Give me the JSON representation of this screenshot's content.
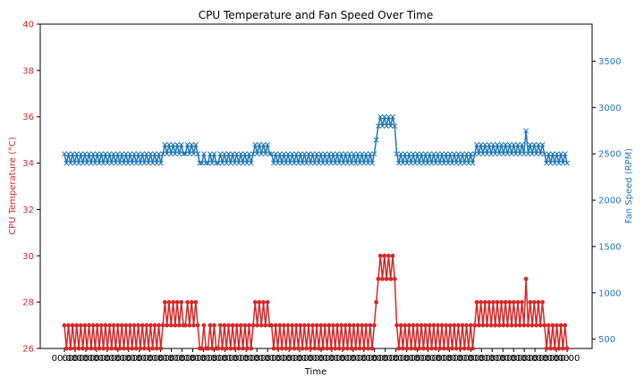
{
  "chart_data": {
    "type": "line",
    "title": "CPU Temperature and Fan Speed Over Time",
    "xlabel": "Time",
    "y1label": "CPU Temperature (°C)",
    "y2label": "Fan Speed (RPM)",
    "y1lim": [
      26,
      40
    ],
    "y2lim": [
      400,
      3900
    ],
    "y1ticks": [
      "26",
      "28",
      "30",
      "32",
      "34",
      "36",
      "38",
      "40"
    ],
    "y2ticks": [
      "500",
      "1000",
      "1500",
      "2000",
      "2500",
      "3000",
      "3500"
    ],
    "x_tick_label": "00:00",
    "grid": false,
    "colors": {
      "temperature": "#d62728",
      "fan": "#1f77b4"
    },
    "series": [
      {
        "axis": "left",
        "marker": "circle",
        "values": [
          27,
          26,
          27,
          26,
          27,
          26,
          27,
          26,
          27,
          26,
          27,
          26,
          27,
          26,
          27,
          26,
          27,
          26,
          27,
          26,
          27,
          26,
          27,
          26,
          27,
          26,
          27,
          26,
          27,
          26,
          27,
          26,
          27,
          26,
          27,
          26,
          27,
          26,
          27,
          26,
          27,
          26,
          27,
          26,
          27,
          26,
          27,
          26,
          27,
          28,
          27,
          28,
          27,
          28,
          27,
          28,
          27,
          28,
          27,
          27,
          28,
          27,
          28,
          27,
          28,
          27,
          26,
          26,
          27,
          26,
          26,
          27,
          26,
          27,
          26,
          26,
          27,
          26,
          27,
          26,
          27,
          26,
          27,
          26,
          27,
          26,
          27,
          26,
          27,
          26,
          27,
          26,
          27,
          28,
          27,
          28,
          27,
          28,
          27,
          28,
          27,
          27,
          26,
          27,
          26,
          27,
          26,
          27,
          26,
          27,
          26,
          27,
          26,
          27,
          26,
          27,
          26,
          27,
          26,
          27,
          26,
          27,
          26,
          27,
          26,
          27,
          26,
          27,
          26,
          27,
          26,
          27,
          26,
          27,
          26,
          27,
          26,
          27,
          26,
          27,
          26,
          27,
          26,
          27,
          26,
          27,
          26,
          27,
          26,
          27,
          26,
          27,
          28,
          29,
          30,
          29,
          30,
          29,
          30,
          29,
          30,
          29,
          27,
          26,
          27,
          26,
          27,
          26,
          27,
          26,
          27,
          26,
          27,
          26,
          27,
          26,
          27,
          26,
          27,
          26,
          27,
          26,
          27,
          26,
          27,
          26,
          27,
          26,
          27,
          26,
          27,
          26,
          27,
          26,
          27,
          26,
          27,
          26,
          27,
          26,
          27,
          28,
          27,
          28,
          27,
          28,
          27,
          28,
          27,
          28,
          27,
          28,
          27,
          28,
          27,
          28,
          27,
          28,
          27,
          28,
          27,
          28,
          27,
          28,
          27,
          29,
          27,
          28,
          27,
          28,
          27,
          28,
          27,
          28,
          27,
          26,
          27,
          26,
          27,
          26,
          27,
          26,
          27,
          26,
          27,
          26
        ]
      },
      {
        "axis": "right",
        "marker": "x",
        "values": [
          2500,
          2400,
          2500,
          2400,
          2500,
          2400,
          2500,
          2400,
          2500,
          2400,
          2500,
          2400,
          2500,
          2400,
          2500,
          2400,
          2500,
          2400,
          2500,
          2400,
          2500,
          2400,
          2500,
          2400,
          2500,
          2400,
          2500,
          2400,
          2500,
          2400,
          2500,
          2400,
          2500,
          2400,
          2500,
          2400,
          2500,
          2400,
          2500,
          2400,
          2500,
          2400,
          2500,
          2400,
          2500,
          2400,
          2500,
          2400,
          2500,
          2600,
          2500,
          2600,
          2500,
          2600,
          2500,
          2600,
          2500,
          2600,
          2500,
          2500,
          2600,
          2500,
          2600,
          2500,
          2600,
          2500,
          2400,
          2400,
          2500,
          2400,
          2400,
          2500,
          2400,
          2500,
          2400,
          2400,
          2500,
          2400,
          2500,
          2400,
          2500,
          2400,
          2500,
          2400,
          2500,
          2400,
          2500,
          2400,
          2500,
          2400,
          2500,
          2400,
          2500,
          2600,
          2500,
          2600,
          2500,
          2600,
          2500,
          2600,
          2500,
          2500,
          2400,
          2500,
          2400,
          2500,
          2400,
          2500,
          2400,
          2500,
          2400,
          2500,
          2400,
          2500,
          2400,
          2500,
          2400,
          2500,
          2400,
          2500,
          2400,
          2500,
          2400,
          2500,
          2400,
          2500,
          2400,
          2500,
          2400,
          2500,
          2400,
          2500,
          2400,
          2500,
          2400,
          2500,
          2400,
          2500,
          2400,
          2500,
          2400,
          2500,
          2400,
          2500,
          2400,
          2500,
          2400,
          2500,
          2400,
          2500,
          2400,
          2500,
          2650,
          2800,
          2900,
          2800,
          2900,
          2800,
          2900,
          2800,
          2900,
          2800,
          2500,
          2400,
          2500,
          2400,
          2500,
          2400,
          2500,
          2400,
          2500,
          2400,
          2500,
          2400,
          2500,
          2400,
          2500,
          2400,
          2500,
          2400,
          2500,
          2400,
          2500,
          2400,
          2500,
          2400,
          2500,
          2400,
          2500,
          2400,
          2500,
          2400,
          2500,
          2400,
          2500,
          2400,
          2500,
          2400,
          2500,
          2400,
          2500,
          2600,
          2500,
          2600,
          2500,
          2600,
          2500,
          2600,
          2500,
          2600,
          2500,
          2600,
          2500,
          2600,
          2500,
          2600,
          2500,
          2600,
          2500,
          2600,
          2500,
          2600,
          2500,
          2600,
          2500,
          2750,
          2500,
          2600,
          2500,
          2600,
          2500,
          2600,
          2500,
          2600,
          2500,
          2400,
          2500,
          2400,
          2500,
          2400,
          2500,
          2400,
          2500,
          2400,
          2500,
          2400
        ]
      }
    ]
  }
}
